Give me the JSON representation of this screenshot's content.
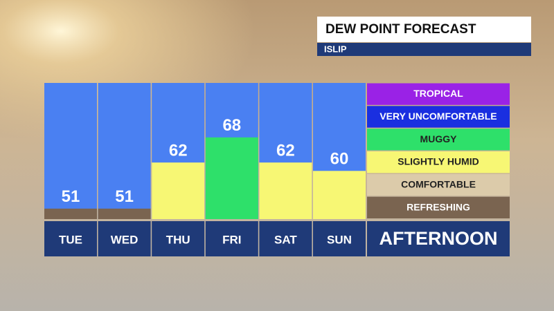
{
  "chart_data": {
    "type": "bar",
    "title": "DEW POINT FORECAST",
    "subtitle": "ISLIP",
    "categories": [
      "TUE",
      "WED",
      "THU",
      "FRI",
      "SAT",
      "SUN"
    ],
    "values": [
      51,
      51,
      62,
      68,
      62,
      60
    ],
    "colors": [
      "#7a6450",
      "#7a6450",
      "#f7f774",
      "#2ee06a",
      "#f7f774",
      "#f7f774"
    ],
    "column_color": "#4a80f2",
    "ylim": [
      48.5,
      81
    ],
    "period_label": "AFTERNOON",
    "legend": [
      {
        "label": "TROPICAL",
        "color": "#9a22e6"
      },
      {
        "label": "VERY UNCOMFORTABLE",
        "color": "#1a2fe0"
      },
      {
        "label": "MUGGY",
        "color": "#2ee06a"
      },
      {
        "label": "SLIGHTLY HUMID",
        "color": "#f7f774"
      },
      {
        "label": "COMFORTABLE",
        "color": "#dccbaa"
      },
      {
        "label": "REFRESHING",
        "color": "#7a6450"
      }
    ]
  }
}
